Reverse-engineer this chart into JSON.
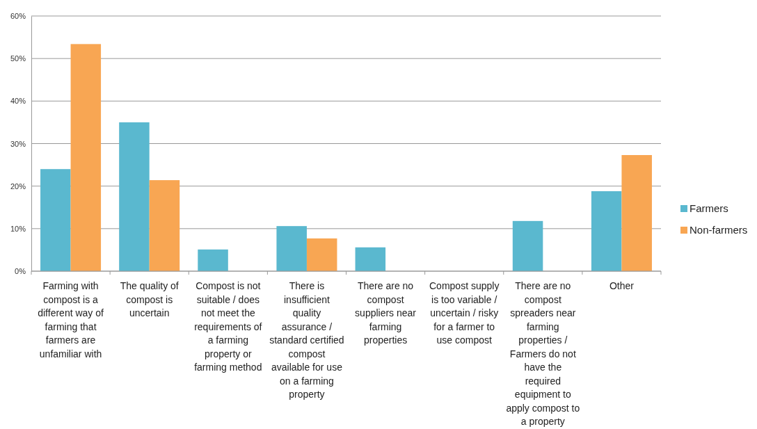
{
  "chart_data": {
    "type": "bar",
    "categories": [
      "Farming with compost is a different way of farming that farmers are unfamiliar with",
      "The quality of compost is uncertain",
      "Compost is not suitable / does not meet the requirements of a farming property or farming method",
      "There is insufficient quality assurance / standard certified compost available for use on a farming property",
      "There are no compost suppliers near farming properties",
      "Compost supply is too variable / uncertain / risky for a farmer to use compost",
      "There are no compost spreaders near farming properties / Farmers do not have the required equipment to apply compost to a property",
      "Other"
    ],
    "series": [
      {
        "name": "Farmers",
        "color": "#5ab8cf",
        "values": [
          24.0,
          35.0,
          5.1,
          10.6,
          5.6,
          0,
          11.8,
          18.8
        ]
      },
      {
        "name": "Non-farmers",
        "color": "#f8a653",
        "values": [
          53.4,
          21.4,
          0,
          7.7,
          0,
          0,
          0,
          27.3
        ]
      }
    ],
    "ylim": [
      0,
      60
    ],
    "yticks": [
      {
        "value": 0,
        "label": "0%"
      },
      {
        "value": 10,
        "label": "10%"
      },
      {
        "value": 20,
        "label": "20%"
      },
      {
        "value": 30,
        "label": "30%"
      },
      {
        "value": 40,
        "label": "40%"
      },
      {
        "value": 50,
        "label": "50%"
      },
      {
        "value": 60,
        "label": "60%"
      }
    ],
    "grid": "y",
    "legend": "right"
  }
}
